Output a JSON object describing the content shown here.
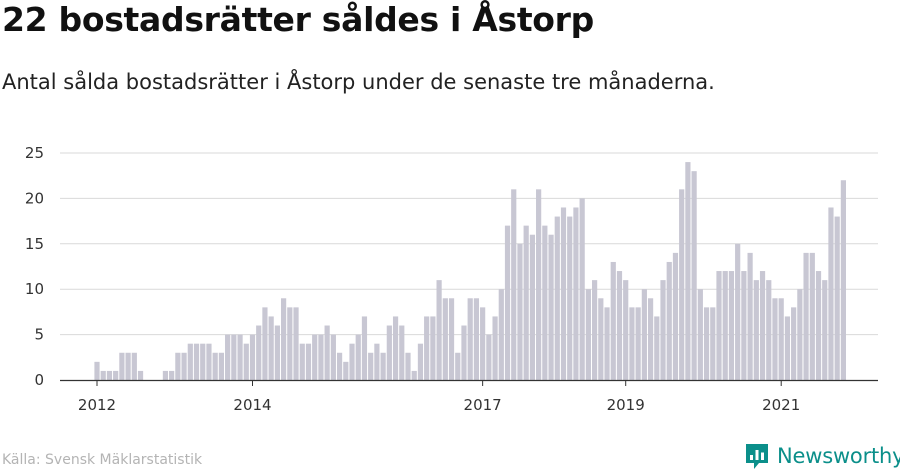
{
  "header": {
    "title": "22 bostadsrätter såldes i Åstorp",
    "subtitle": "Antal sålda bostadsrätter i Åstorp under de senaste tre månaderna."
  },
  "footer": {
    "source": "Källa: Svensk Mäklarstatistik",
    "brand_name": "Newsworthy",
    "brand_icon": "newsworthy-logo-icon"
  },
  "colors": {
    "bar": "#c8c7d3",
    "highlight": "#0b9a8f",
    "grid": "#d9d9d9",
    "axis": "#333333"
  },
  "chart_data": {
    "type": "bar",
    "title": "22 bostadsrätter såldes i Åstorp",
    "subtitle": "Antal sålda bostadsrätter i Åstorp under de senaste tre månaderna.",
    "xlabel": "",
    "ylabel": "",
    "ylim": [
      0,
      25
    ],
    "yticks": [
      0,
      5,
      10,
      15,
      20,
      25
    ],
    "grid": true,
    "legend": "none",
    "x_tick_labels": [
      {
        "label": "2012",
        "index": 0
      },
      {
        "label": "2014",
        "index": 25
      },
      {
        "label": "2017",
        "index": 62
      },
      {
        "label": "2019",
        "index": 85
      },
      {
        "label": "2021",
        "index": 110
      }
    ],
    "highlight_index": 121,
    "highlight_label": "22",
    "values": [
      2,
      1,
      1,
      1,
      3,
      3,
      3,
      1,
      0,
      0,
      0,
      1,
      1,
      3,
      3,
      4,
      4,
      4,
      4,
      3,
      3,
      5,
      5,
      5,
      4,
      5,
      6,
      8,
      7,
      6,
      9,
      8,
      8,
      4,
      4,
      5,
      5,
      6,
      5,
      3,
      2,
      4,
      5,
      7,
      3,
      4,
      3,
      6,
      7,
      6,
      3,
      1,
      4,
      7,
      7,
      11,
      9,
      9,
      3,
      6,
      9,
      9,
      8,
      5,
      7,
      10,
      17,
      21,
      15,
      17,
      16,
      21,
      17,
      16,
      18,
      19,
      18,
      19,
      20,
      10,
      11,
      9,
      8,
      13,
      12,
      11,
      8,
      8,
      10,
      9,
      7,
      11,
      13,
      14,
      21,
      24,
      23,
      10,
      8,
      8,
      12,
      12,
      12,
      15,
      12,
      14,
      11,
      12,
      11,
      9,
      9,
      7,
      8,
      10,
      14,
      14,
      12,
      11,
      19,
      18,
      22
    ]
  }
}
